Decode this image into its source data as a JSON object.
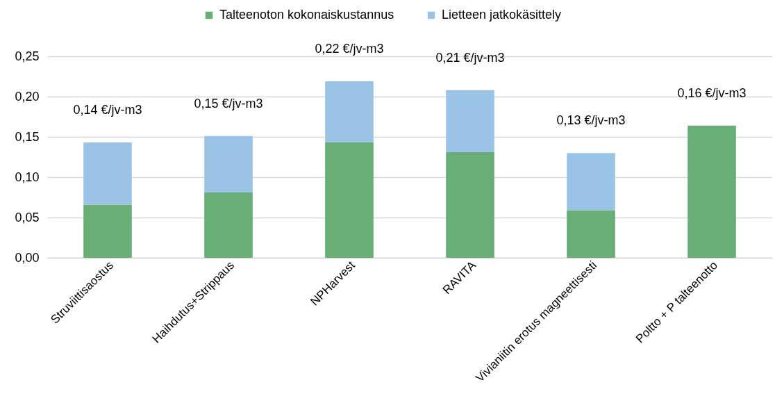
{
  "chart_data": {
    "type": "bar",
    "stacked": true,
    "categories": [
      "Struviittisaostus",
      "Haihdutus+Strippaus",
      "NPHarvest",
      "RAVITA",
      "Vivianiitin erotus magneettisesti",
      "Poltto + P talteenotto"
    ],
    "series": [
      {
        "name": "Talteenoton kokonaiskustannus",
        "color": "#69ae76",
        "values": [
          0.066,
          0.081,
          0.143,
          0.131,
          0.059,
          0.164
        ]
      },
      {
        "name": "Lietteen jatkokäsittely",
        "color": "#9bc3e6",
        "values": [
          0.077,
          0.07,
          0.076,
          0.077,
          0.071,
          null
        ]
      }
    ],
    "totals": [
      "0,14 €/jv-m3",
      "0,15 €/jv-m3",
      "0,22 €/jv-m3",
      "0,21 €/jv-m3",
      "0,13 €/jv-m3",
      "0,16 €/jv-m3"
    ],
    "ylim": [
      0,
      0.25
    ],
    "yticks": [
      {
        "value": 0,
        "label": "0,00"
      },
      {
        "value": 0.05,
        "label": "0,05"
      },
      {
        "value": 0.1,
        "label": "0,10"
      },
      {
        "value": 0.15,
        "label": "0,15"
      },
      {
        "value": 0.2,
        "label": "0,20"
      },
      {
        "value": 0.25,
        "label": "0,25"
      }
    ],
    "grid": "y",
    "legend": "top"
  }
}
